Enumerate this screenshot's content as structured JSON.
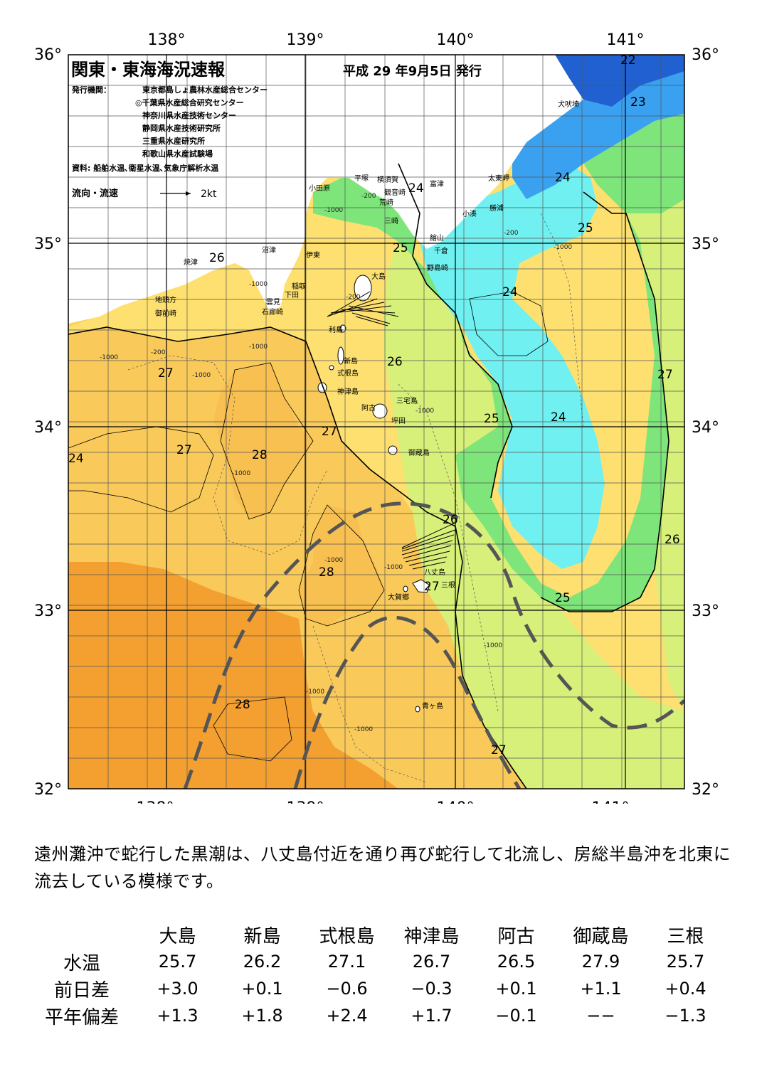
{
  "header": {
    "title": "関東・東海海況速報",
    "issue_date": "平成 29 年9月5日 発行",
    "issuers_label": "発行機関：",
    "issuers": [
      "東京都島しょ農林水産総合センター",
      "◎千葉県水産総合研究センター",
      "神奈川県水産技術センター",
      "静岡県水産技術研究所",
      "三重県水産研究所",
      "和歌山県水産試験場"
    ],
    "source": "資料: 船舶水温､衛星水温､気象庁解析水温",
    "current_legend_label": "流向・流速",
    "current_legend_value": "2kt"
  },
  "axes": {
    "lon_ticks": [
      "138°",
      "139°",
      "140°",
      "141°"
    ],
    "lat_ticks": [
      "36°",
      "35°",
      "34°",
      "33°",
      "32°"
    ]
  },
  "place_names": {
    "coast": [
      "犬吠埼",
      "太東岬",
      "勝浦",
      "小湊",
      "富津",
      "館山",
      "千倉",
      "野島崎",
      "横須賀",
      "観音崎",
      "荒崎",
      "三崎",
      "平塚",
      "小田原",
      "沼津",
      "伊東",
      "稲取",
      "下田",
      "雲見",
      "石廊崎",
      "焼津",
      "地頭方",
      "御前崎"
    ],
    "islands": [
      "大島",
      "利島",
      "新島",
      "式根島",
      "神津島",
      "阿古",
      "三宅島",
      "坪田",
      "御蔵島",
      "八丈島",
      "三根",
      "大賀郷",
      "青ヶ島"
    ]
  },
  "contour_labels": [
    "22",
    "23",
    "24",
    "24",
    "25",
    "25",
    "24",
    "26",
    "26",
    "27",
    "27",
    "27",
    "27",
    "28",
    "24",
    "25",
    "26",
    "26",
    "28",
    "27",
    "25",
    "28",
    "27",
    "26"
  ],
  "depth_labels": [
    "-200",
    "-1000",
    "-200",
    "-1000",
    "-1000",
    "-200",
    "-1000",
    "-1000",
    "-1000",
    "-1000",
    "-200",
    "-1000",
    "-1000",
    "-1000",
    "-1000",
    "-1000",
    "-1000"
  ],
  "colors": {
    "sst_28_plus": "#f4a030",
    "sst_27_28": "#f8c656",
    "sst_26_27": "#fde070",
    "sst_25_26": "#d7f07a",
    "sst_24_25": "#7ee57a",
    "sst_23_24": "#70f0f0",
    "sst_22_23": "#3aa0f0",
    "sst_below_22": "#2060d0",
    "land": "#ffffff",
    "kuroshio_axis": "#555555"
  },
  "description": "遠州灘沖で蛇行した黒潮は、八丈島付近を通り再び蛇行して北流し、房総半島沖を北東に流去している模様です。",
  "table": {
    "stations": [
      "大島",
      "新島",
      "式根島",
      "神津島",
      "阿古",
      "御蔵島",
      "三根"
    ],
    "rows": [
      {
        "label": "水温",
        "values": [
          "25.7",
          "26.2",
          "27.1",
          "26.7",
          "26.5",
          "27.9",
          "25.7"
        ]
      },
      {
        "label": "前日差",
        "values": [
          "+3.0",
          "+0.1",
          "−0.6",
          "−0.3",
          "+0.1",
          "+1.1",
          "+0.4"
        ]
      },
      {
        "label": "平年偏差",
        "values": [
          "+1.3",
          "+1.8",
          "+2.4",
          "+1.7",
          "−0.1",
          "−−",
          "−1.3"
        ]
      }
    ]
  }
}
